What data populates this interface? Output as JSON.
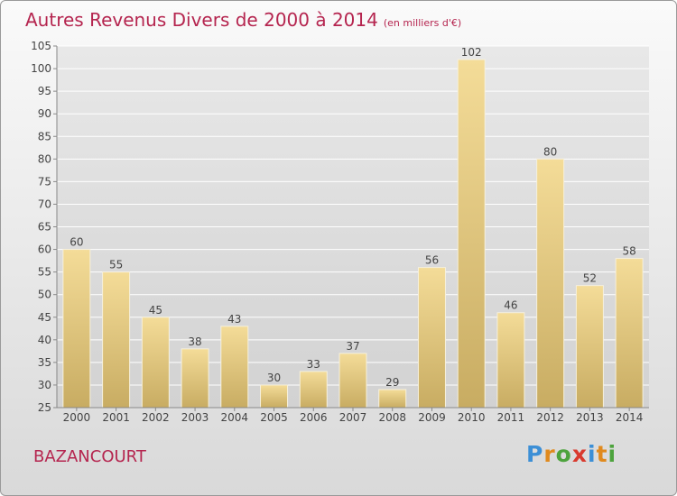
{
  "title": {
    "main": "Autres Revenus Divers de 2000 à 2014",
    "unit": "(en milliers d'€)"
  },
  "location": "BAZANCOURT",
  "logo": {
    "text": "Proxiti"
  },
  "colors": {
    "bar_top": "#f4dc98",
    "bar_bottom": "#c8ac62",
    "title": "#b5254f"
  },
  "chart_data": {
    "type": "bar",
    "categories": [
      "2000",
      "2001",
      "2002",
      "2003",
      "2004",
      "2005",
      "2006",
      "2007",
      "2008",
      "2009",
      "2010",
      "2011",
      "2012",
      "2013",
      "2014"
    ],
    "values": [
      60,
      55,
      45,
      38,
      43,
      30,
      33,
      37,
      29,
      56,
      102,
      46,
      80,
      52,
      58
    ],
    "ylim": [
      25,
      105
    ],
    "yticks": [
      25,
      30,
      35,
      40,
      45,
      50,
      55,
      60,
      65,
      70,
      75,
      80,
      85,
      90,
      95,
      100,
      105
    ],
    "grid": true,
    "data_labels": true
  }
}
